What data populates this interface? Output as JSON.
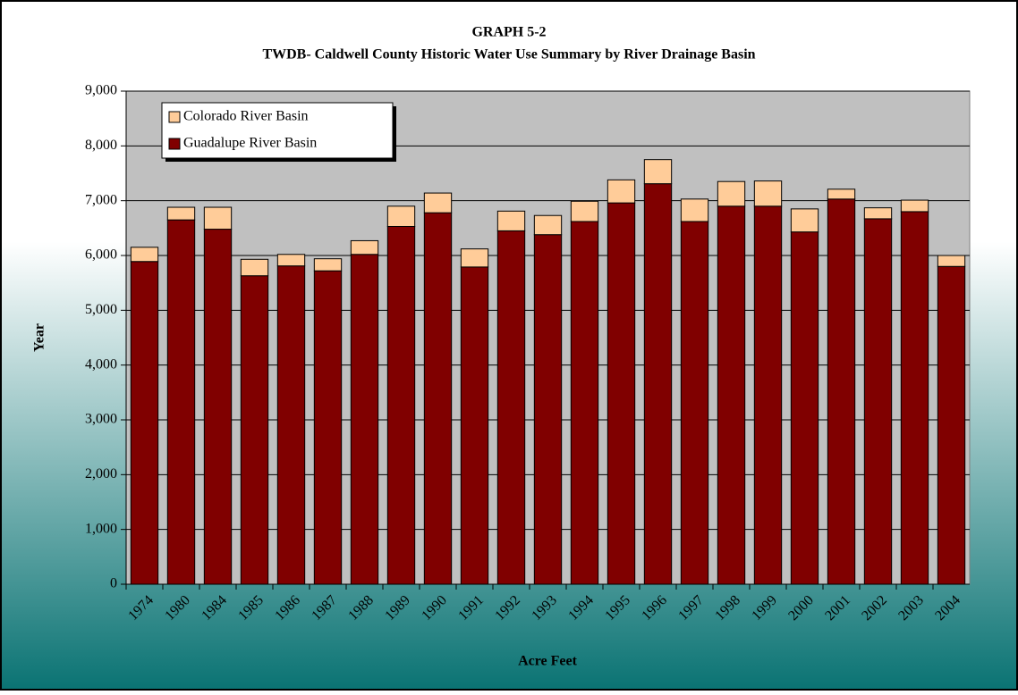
{
  "chart_data": {
    "type": "stacked_bar",
    "title": "GRAPH 5-2",
    "subtitle": "TWDB- Caldwell County Historic Water Use Summary by River Drainage Basin",
    "x_label": "Acre Feet",
    "y_label": "Year",
    "categories": [
      "1974",
      "1980",
      "1984",
      "1985",
      "1986",
      "1987",
      "1988",
      "1989",
      "1990",
      "1991",
      "1992",
      "1993",
      "1994",
      "1995",
      "1996",
      "1997",
      "1998",
      "1999",
      "2000",
      "2001",
      "2002",
      "2003",
      "2004"
    ],
    "series": [
      {
        "name": "Guadalupe River Basin",
        "color": "#800000",
        "values": [
          5890,
          6650,
          6480,
          5630,
          5810,
          5720,
          6020,
          6530,
          6780,
          5790,
          6450,
          6380,
          6620,
          6960,
          7310,
          6620,
          6900,
          6900,
          6430,
          7030,
          6670,
          6800,
          5800
        ]
      },
      {
        "name": "Colorado River Basin",
        "color": "#ffcc99",
        "values": [
          260,
          230,
          400,
          300,
          210,
          220,
          250,
          370,
          360,
          330,
          360,
          350,
          370,
          420,
          440,
          410,
          450,
          460,
          420,
          180,
          200,
          210,
          200
        ]
      }
    ],
    "ylim": [
      0,
      9000
    ],
    "yticks": [
      0,
      {
        "value": 1000,
        "label": "1,000"
      },
      {
        "value": 2000,
        "label": "2,000"
      },
      {
        "value": 3000,
        "label": "3,000"
      },
      {
        "value": 4000,
        "label": "4,000"
      },
      {
        "value": 5000,
        "label": "5,000"
      },
      {
        "value": 6000,
        "label": "6,000"
      },
      {
        "value": 7000,
        "label": "7,000"
      },
      {
        "value": 8000,
        "label": "8,000"
      },
      {
        "value": 9000,
        "label": "9,000"
      }
    ],
    "grid": true,
    "legend": "upper left",
    "plot_background": "#c0c0c0"
  }
}
